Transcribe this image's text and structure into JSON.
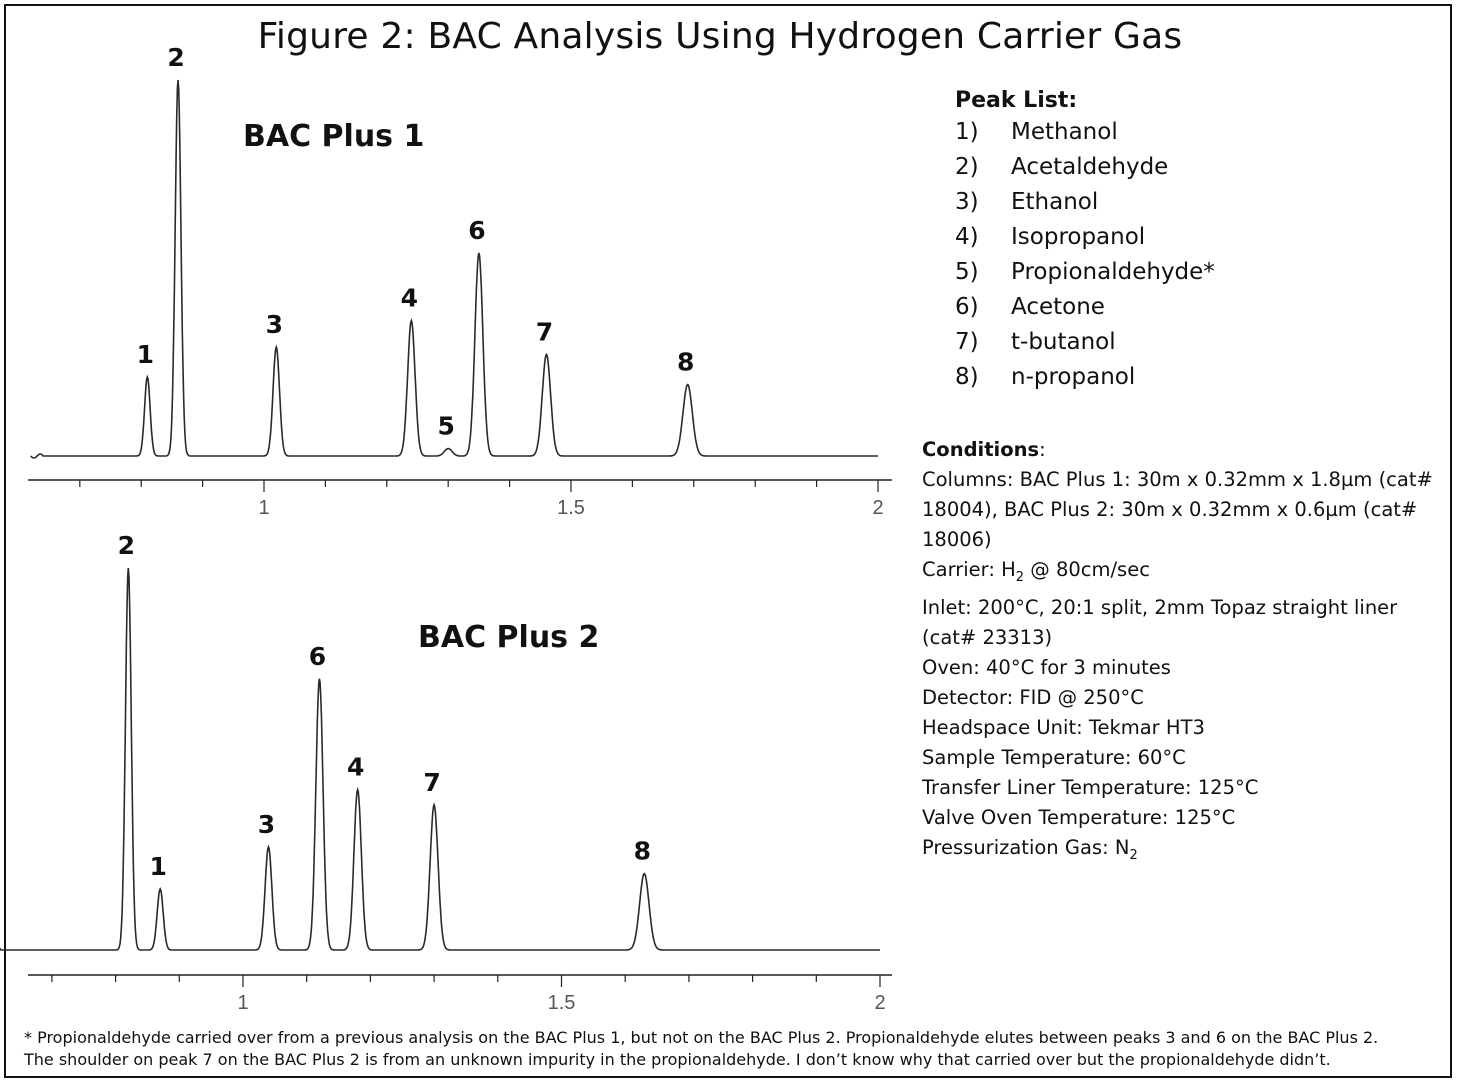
{
  "title": "Figure 2: BAC Analysis Using Hydrogen Carrier Gas",
  "chart_data": [
    {
      "type": "line",
      "name": "BAC Plus 1",
      "label": "BAC Plus 1",
      "xlim": [
        0.62,
        2.0
      ],
      "x_ticks": [
        "1",
        "1.5",
        "2"
      ],
      "x_tick_values": [
        1,
        1.5,
        2
      ],
      "y_relative_max": 1.0,
      "peaks": [
        {
          "label": "1",
          "rt": 0.81,
          "height": 0.21
        },
        {
          "label": "2",
          "rt": 0.86,
          "height": 1.0
        },
        {
          "label": "3",
          "rt": 1.02,
          "height": 0.29
        },
        {
          "label": "4",
          "rt": 1.24,
          "height": 0.36
        },
        {
          "label": "5",
          "rt": 1.3,
          "height": 0.02
        },
        {
          "label": "6",
          "rt": 1.35,
          "height": 0.54
        },
        {
          "label": "7",
          "rt": 1.46,
          "height": 0.27
        },
        {
          "label": "8",
          "rt": 1.69,
          "height": 0.19
        }
      ]
    },
    {
      "type": "line",
      "name": "BAC Plus 2",
      "label": "BAC Plus 2",
      "xlim": [
        0.6,
        2.0
      ],
      "x_ticks": [
        "1",
        "1.5",
        "2"
      ],
      "x_tick_values": [
        1,
        1.5,
        2
      ],
      "y_relative_max": 1.0,
      "peaks": [
        {
          "label": "2",
          "rt": 0.82,
          "height": 1.0
        },
        {
          "label": "1",
          "rt": 0.87,
          "height": 0.16
        },
        {
          "label": "3",
          "rt": 1.04,
          "height": 0.27
        },
        {
          "label": "6",
          "rt": 1.12,
          "height": 0.71
        },
        {
          "label": "4",
          "rt": 1.18,
          "height": 0.42
        },
        {
          "label": "7",
          "rt": 1.3,
          "height": 0.38
        },
        {
          "label": "8",
          "rt": 1.63,
          "height": 0.2
        }
      ]
    }
  ],
  "peak_list": {
    "title": "Peak List:",
    "items": [
      {
        "num": "1)",
        "name": "Methanol"
      },
      {
        "num": "2)",
        "name": "Acetaldehyde"
      },
      {
        "num": "3)",
        "name": "Ethanol"
      },
      {
        "num": "4)",
        "name": "Isopropanol"
      },
      {
        "num": "5)",
        "name": "Propionaldehyde*"
      },
      {
        "num": "6)",
        "name": "Acetone"
      },
      {
        "num": "7)",
        "name": "t-butanol"
      },
      {
        "num": "8)",
        "name": "n-propanol"
      }
    ]
  },
  "conditions": {
    "title": "Conditions",
    "title_suffix": ":",
    "columns": "Columns: BAC Plus 1: 30m x 0.32mm x 1.8µm (cat# 18004), BAC Plus 2: 30m x 0.32mm x 0.6µm (cat# 18006)",
    "carrier_prefix": "Carrier: H",
    "carrier_sub": "2",
    "carrier_suffix": " @ 80cm/sec",
    "inlet": "Inlet: 200°C, 20:1 split, 2mm Topaz straight liner (cat# 23313)",
    "oven": "Oven: 40°C for 3 minutes",
    "detector": "Detector: FID @ 250°C",
    "headspace": "Headspace Unit: Tekmar HT3",
    "sample_temp": "Sample Temperature:  60°C",
    "transfer_temp": "Transfer Liner Temperature:  125°C",
    "valve_temp": "Valve Oven Temperature:  125°C",
    "press_prefix": "Pressurization Gas: N",
    "press_sub": "2"
  },
  "footnote": {
    "line1": "* Propionaldehyde carried over from a previous analysis on the BAC Plus 1, but not on the BAC Plus 2. Propionaldehyde elutes between peaks 3 and 6 on the BAC Plus 2.",
    "line2": "The shoulder on peak 7 on the BAC Plus 2 is from an unknown impurity in the propionaldehyde. I don’t know why that carried over but the propionaldehyde didn’t."
  }
}
